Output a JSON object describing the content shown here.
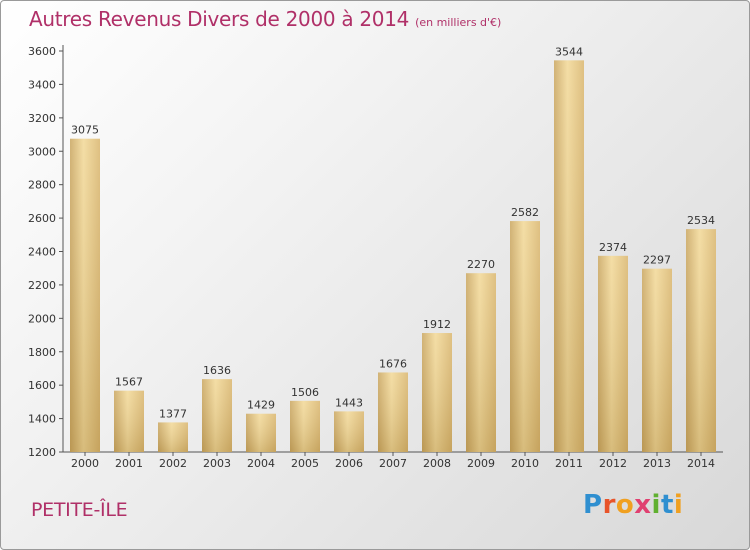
{
  "chart_data": {
    "type": "bar",
    "title": "Autres Revenus Divers de 2000 à 2014",
    "subtitle": "(en milliers d'€)",
    "categories": [
      "2000",
      "2001",
      "2002",
      "2003",
      "2004",
      "2005",
      "2006",
      "2007",
      "2008",
      "2009",
      "2010",
      "2011",
      "2012",
      "2013",
      "2014"
    ],
    "values": [
      3075,
      1567,
      1377,
      1636,
      1429,
      1506,
      1443,
      1676,
      1912,
      2270,
      2582,
      3544,
      2374,
      2297,
      2534
    ],
    "data_labels": [
      "3075",
      "1567",
      "1377",
      "1636",
      "1429",
      "1506",
      "1443",
      "1676",
      "1912",
      "2270",
      "2582",
      "3544",
      "2374",
      "2297",
      "2534"
    ],
    "ylim": [
      1200,
      3600
    ],
    "yticks": [
      "1200",
      "1400",
      "1600",
      "1800",
      "2000",
      "2200",
      "2400",
      "2600",
      "2800",
      "3000",
      "3200",
      "3400",
      "3600"
    ],
    "grid": false,
    "bar_color": "#e8cc84"
  },
  "footer": {
    "place": "PETITE-ÎLE",
    "logo_letters": [
      {
        "char": "P",
        "color": "#2f8fd0"
      },
      {
        "char": "r",
        "color": "#e8542a"
      },
      {
        "char": "o",
        "color": "#f0a020"
      },
      {
        "char": "x",
        "color": "#e04070"
      },
      {
        "char": "i",
        "color": "#60b030"
      },
      {
        "char": "t",
        "color": "#2f8fd0"
      },
      {
        "char": "i",
        "color": "#f0a020"
      }
    ]
  }
}
